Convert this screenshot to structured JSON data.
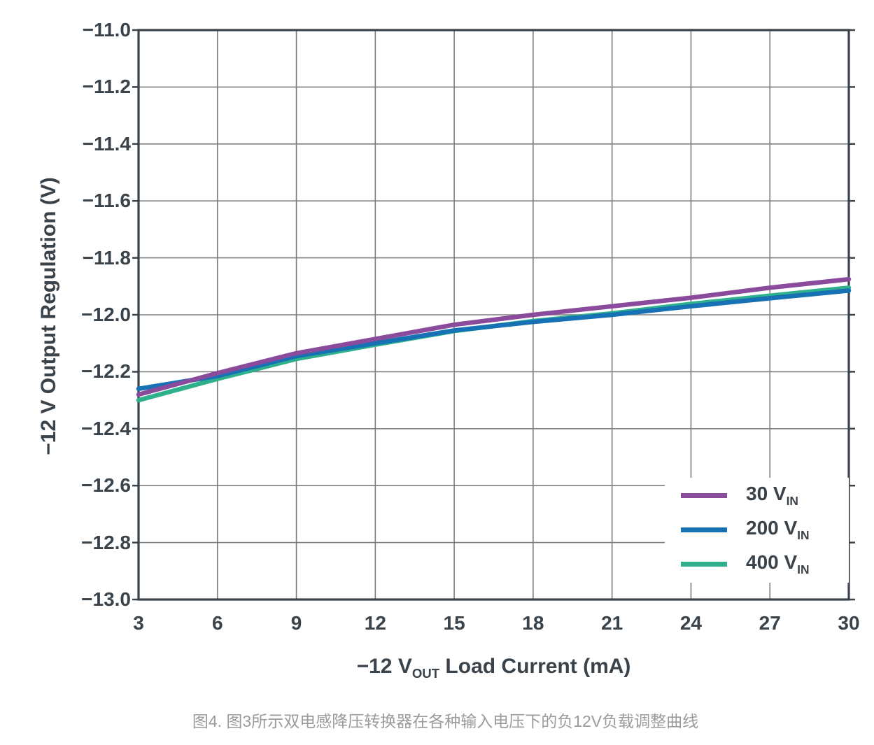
{
  "chart_data": {
    "type": "line",
    "title": "",
    "xlabel_pre": "−12 V",
    "xlabel_sub": "OUT",
    "xlabel_post": " Load Current (mA)",
    "ylabel": "−12 V Output Regulation (V)",
    "xlim": [
      3,
      30
    ],
    "ylim": [
      -13.0,
      -11.0
    ],
    "grid": true,
    "legend_position": "lower right",
    "x_tick_values": [
      3,
      6,
      9,
      12,
      15,
      18,
      21,
      24,
      27,
      30
    ],
    "x_tick_labels": [
      "3",
      "6",
      "9",
      "12",
      "15",
      "18",
      "21",
      "24",
      "27",
      "30"
    ],
    "y_tick_values": [
      -11.0,
      -11.2,
      -11.4,
      -11.6,
      -11.8,
      -12.0,
      -12.2,
      -12.4,
      -12.6,
      -12.8,
      -13.0
    ],
    "y_tick_labels": [
      "−11.0",
      "−11.2",
      "−11.4",
      "−11.6",
      "−11.8",
      "−12.0",
      "−12.2",
      "−12.4",
      "−12.6",
      "−12.8",
      "−13.0"
    ],
    "x": [
      3,
      6,
      9,
      12,
      15,
      18,
      21,
      24,
      27,
      30
    ],
    "series": [
      {
        "name": "400 V_IN",
        "legend_main": "400 V",
        "legend_sub": "IN",
        "color": "#2FB08D",
        "values": [
          -12.3,
          -12.225,
          -12.155,
          -12.105,
          -12.057,
          -12.022,
          -11.995,
          -11.962,
          -11.933,
          -11.905
        ]
      },
      {
        "name": "200 V_IN",
        "legend_main": "200 V",
        "legend_sub": "IN",
        "color": "#1672B5",
        "values": [
          -12.26,
          -12.215,
          -12.145,
          -12.1,
          -12.055,
          -12.025,
          -12.0,
          -11.97,
          -11.942,
          -11.915
        ]
      },
      {
        "name": "30 V_IN",
        "legend_main": "30 V",
        "legend_sub": "IN",
        "color": "#8A4B9C",
        "values": [
          -12.28,
          -12.205,
          -12.135,
          -12.085,
          -12.035,
          -12.0,
          -11.97,
          -11.94,
          -11.905,
          -11.875
        ]
      }
    ],
    "colors": {
      "axis_text": "#3A424A",
      "border": "#3A424A",
      "gridline": "#7D7D7D",
      "caption_text": "#9B9B9B"
    }
  },
  "legend_order": [
    2,
    1,
    0
  ],
  "caption": {
    "text": "图4. 图3所示双电感降压转换器在各种输入电压下的负12V负载调整曲线"
  }
}
